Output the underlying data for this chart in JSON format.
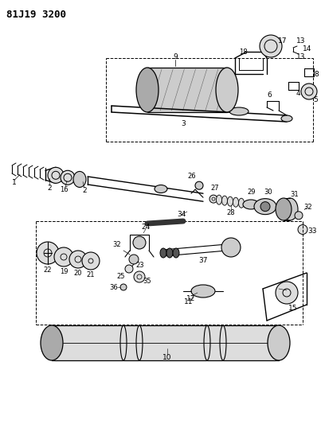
{
  "title": "81J19 3200",
  "background_color": "#ffffff",
  "line_color": "#000000",
  "fig_width": 4.03,
  "fig_height": 5.33,
  "dpi": 100,
  "gray_fill": "#888888",
  "light_gray": "#bbbbbb",
  "dark_gray": "#444444"
}
